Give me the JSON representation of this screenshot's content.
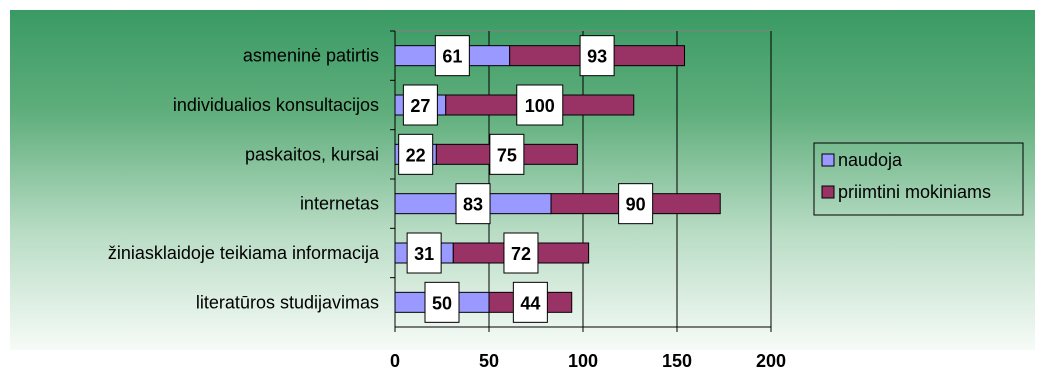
{
  "chart_data": {
    "type": "bar",
    "orientation": "horizontal",
    "stacked": true,
    "categories": [
      "asmeninė patirtis",
      "individualios konsultacijos",
      "paskaitos, kursai",
      "internetas",
      "žiniasklaidoje teikiama informacija",
      "literatūros studijavimas"
    ],
    "series": [
      {
        "name": "naudoja",
        "values": [
          61,
          27,
          22,
          83,
          31,
          50
        ],
        "color": "#9999ff"
      },
      {
        "name": "priimtini mokiniams",
        "values": [
          93,
          100,
          75,
          90,
          72,
          44
        ],
        "color": "#993366"
      }
    ],
    "xlim": [
      0,
      200
    ],
    "xticks": [
      0,
      50,
      100,
      150,
      200
    ],
    "grid": true,
    "legend": "right",
    "title": "",
    "xlabel": "",
    "ylabel": ""
  }
}
